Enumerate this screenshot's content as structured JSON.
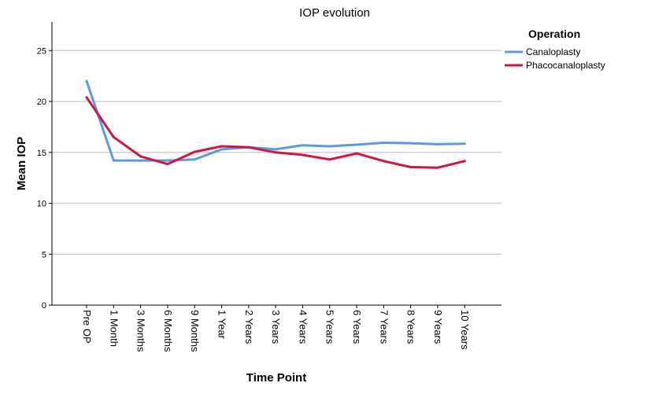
{
  "chart_data": {
    "type": "line",
    "title": "IOP evolution",
    "xlabel": "Time Point",
    "ylabel": "Mean IOP",
    "categories": [
      "Pre OP",
      "1 Month",
      "3 Months",
      "6 Months",
      "9 Months",
      "1 Year",
      "2 Years",
      "3 Years",
      "4 Years",
      "5 Years",
      "6 Years",
      "7 Years",
      "8 Years",
      "9 Years",
      "10 Years"
    ],
    "ylim": [
      0,
      27.8
    ],
    "yticks": [
      0,
      5,
      10,
      15,
      20,
      25
    ],
    "grid": true,
    "legend_title": "Operation",
    "legend_position": "top-right",
    "series": [
      {
        "name": "Canaloplasty",
        "color": "#5b9ae4",
        "values": [
          22.0,
          14.2,
          14.2,
          14.2,
          14.3,
          15.3,
          15.5,
          15.3,
          15.7,
          15.6,
          15.75,
          15.95,
          15.9,
          15.8,
          15.85
        ]
      },
      {
        "name": "Phacocanaloplasty",
        "color": "#d0163f",
        "values": [
          20.4,
          16.5,
          14.6,
          13.85,
          15.05,
          15.6,
          15.5,
          15.0,
          14.75,
          14.3,
          14.9,
          14.15,
          13.55,
          13.5,
          14.15
        ]
      }
    ]
  }
}
